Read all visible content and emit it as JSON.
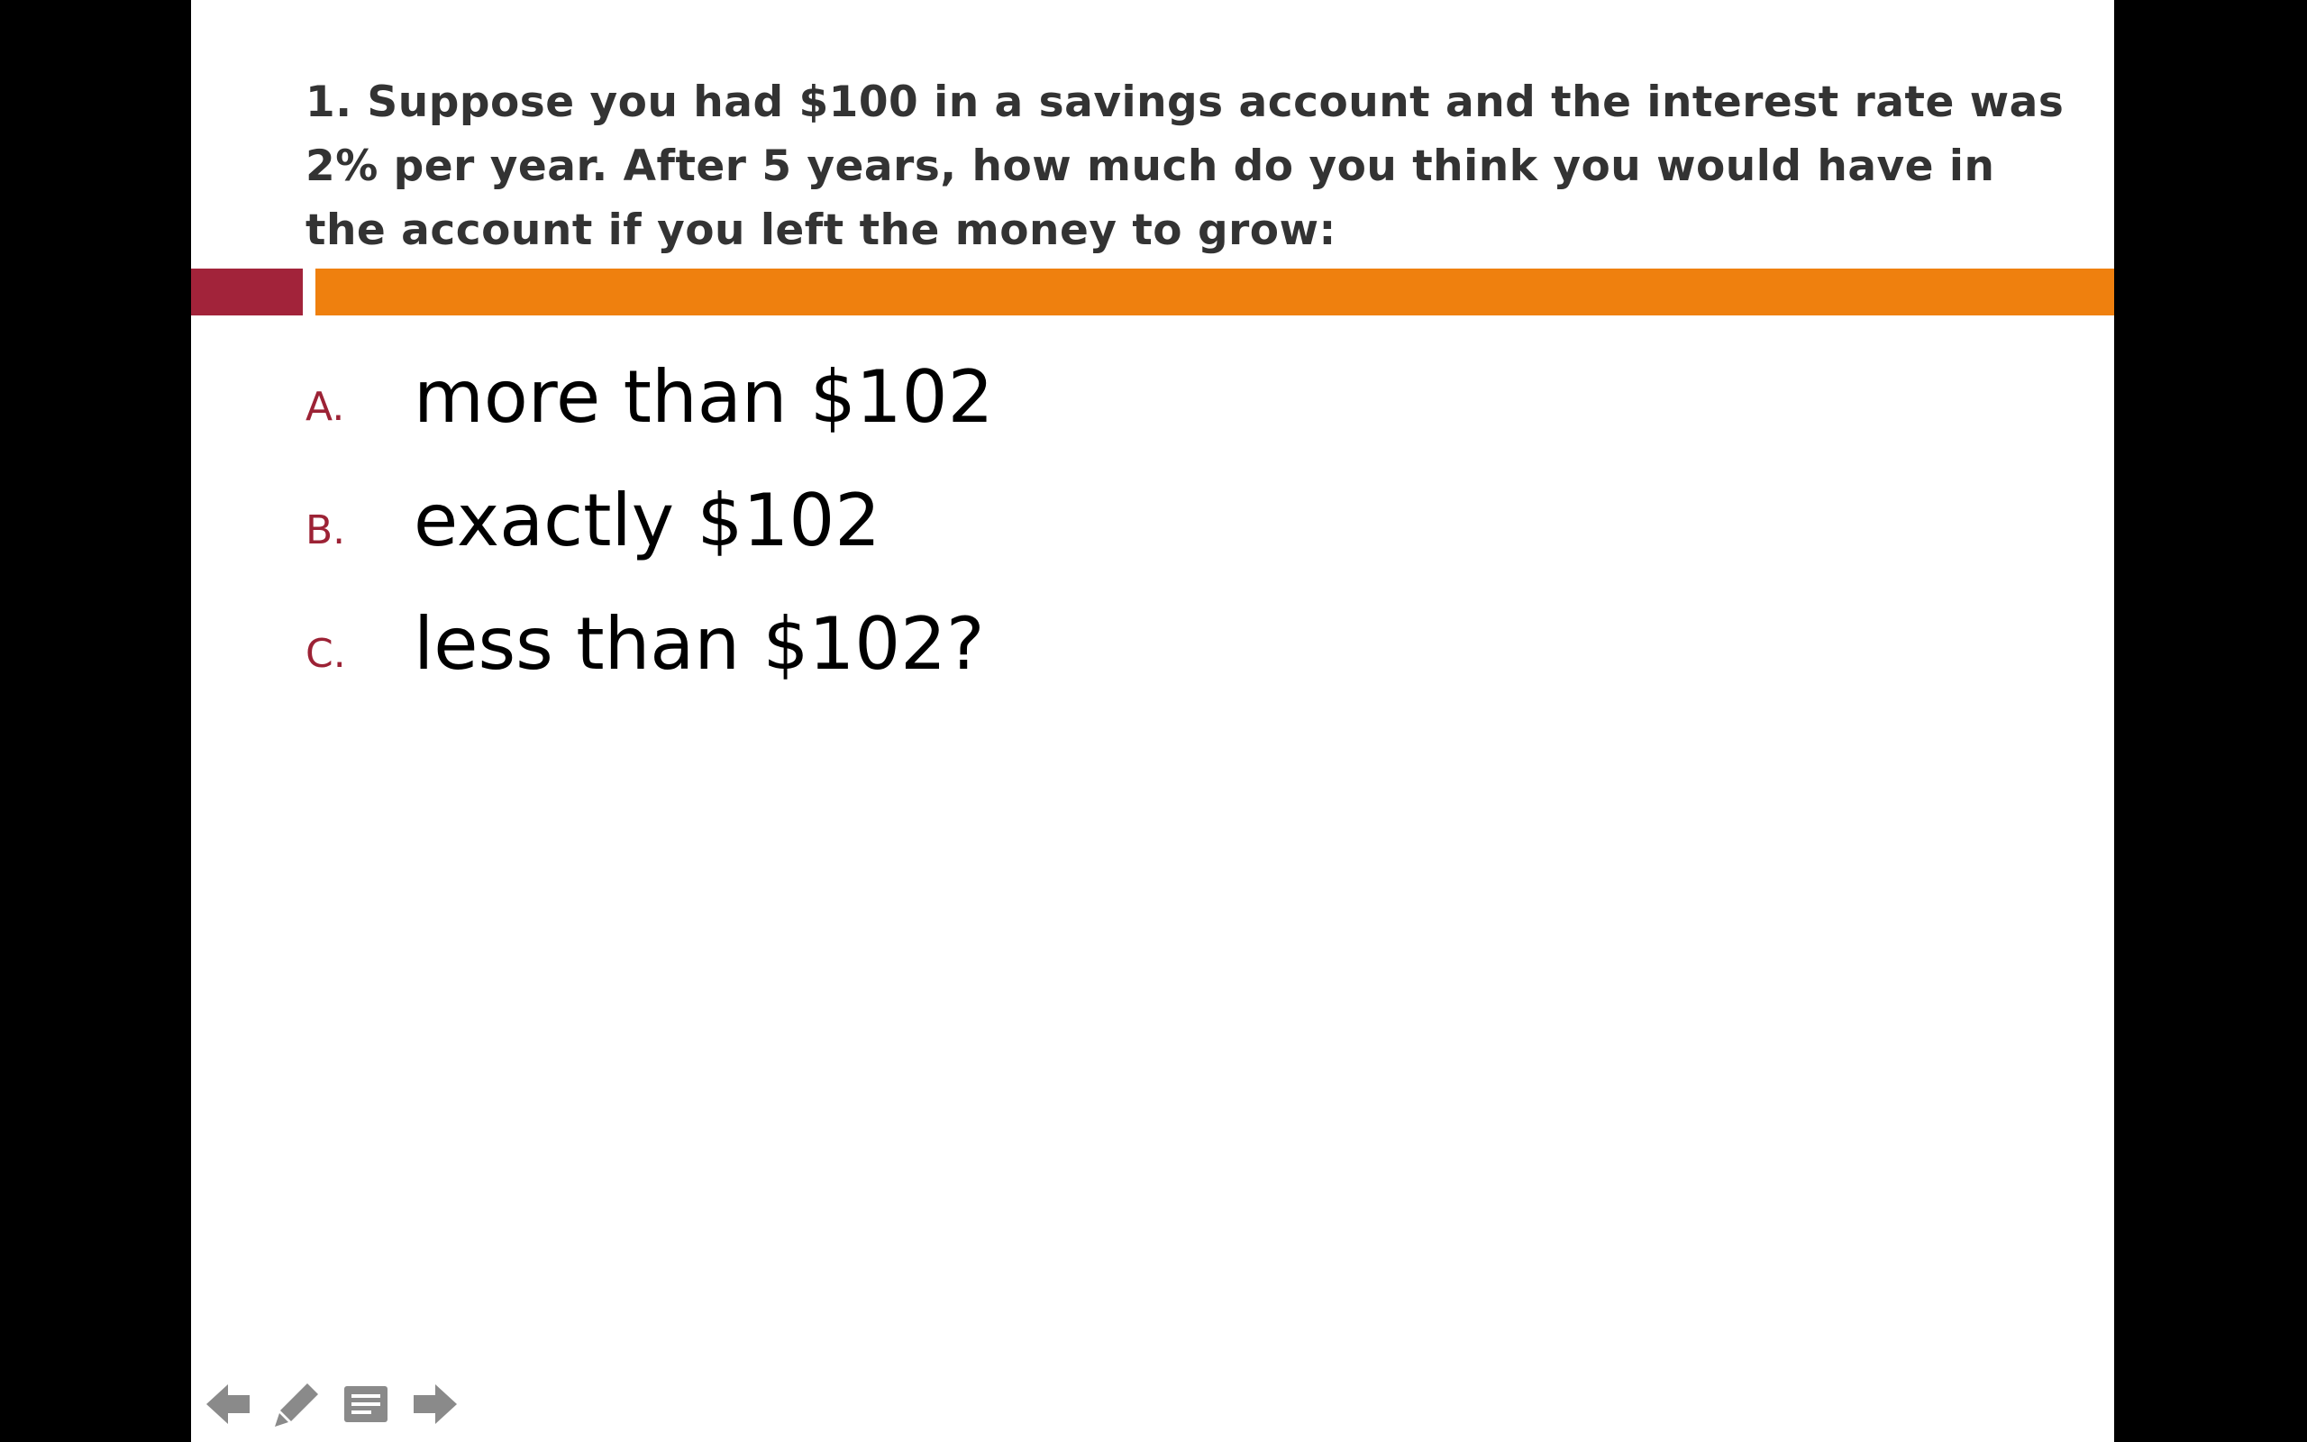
{
  "slide": {
    "question": "1. Suppose you had $100 in a savings account and the interest rate was 2% per year. After 5 years, how much do you think you would have in the account if you left the money to grow:",
    "options": [
      {
        "letter": "A.",
        "text": "more than $102"
      },
      {
        "letter": "B.",
        "text": "exactly $102"
      },
      {
        "letter": "C.",
        "text": "less than $102?"
      }
    ]
  },
  "colors": {
    "accent_red": "#a2233a",
    "accent_orange": "#ef800e",
    "title_text": "#333333",
    "option_letter": "#9c2235",
    "controls": "#8a8a8a"
  },
  "controls": {
    "icons": [
      "arrow-left-icon",
      "pencil-icon",
      "notes-icon",
      "arrow-right-icon"
    ]
  }
}
